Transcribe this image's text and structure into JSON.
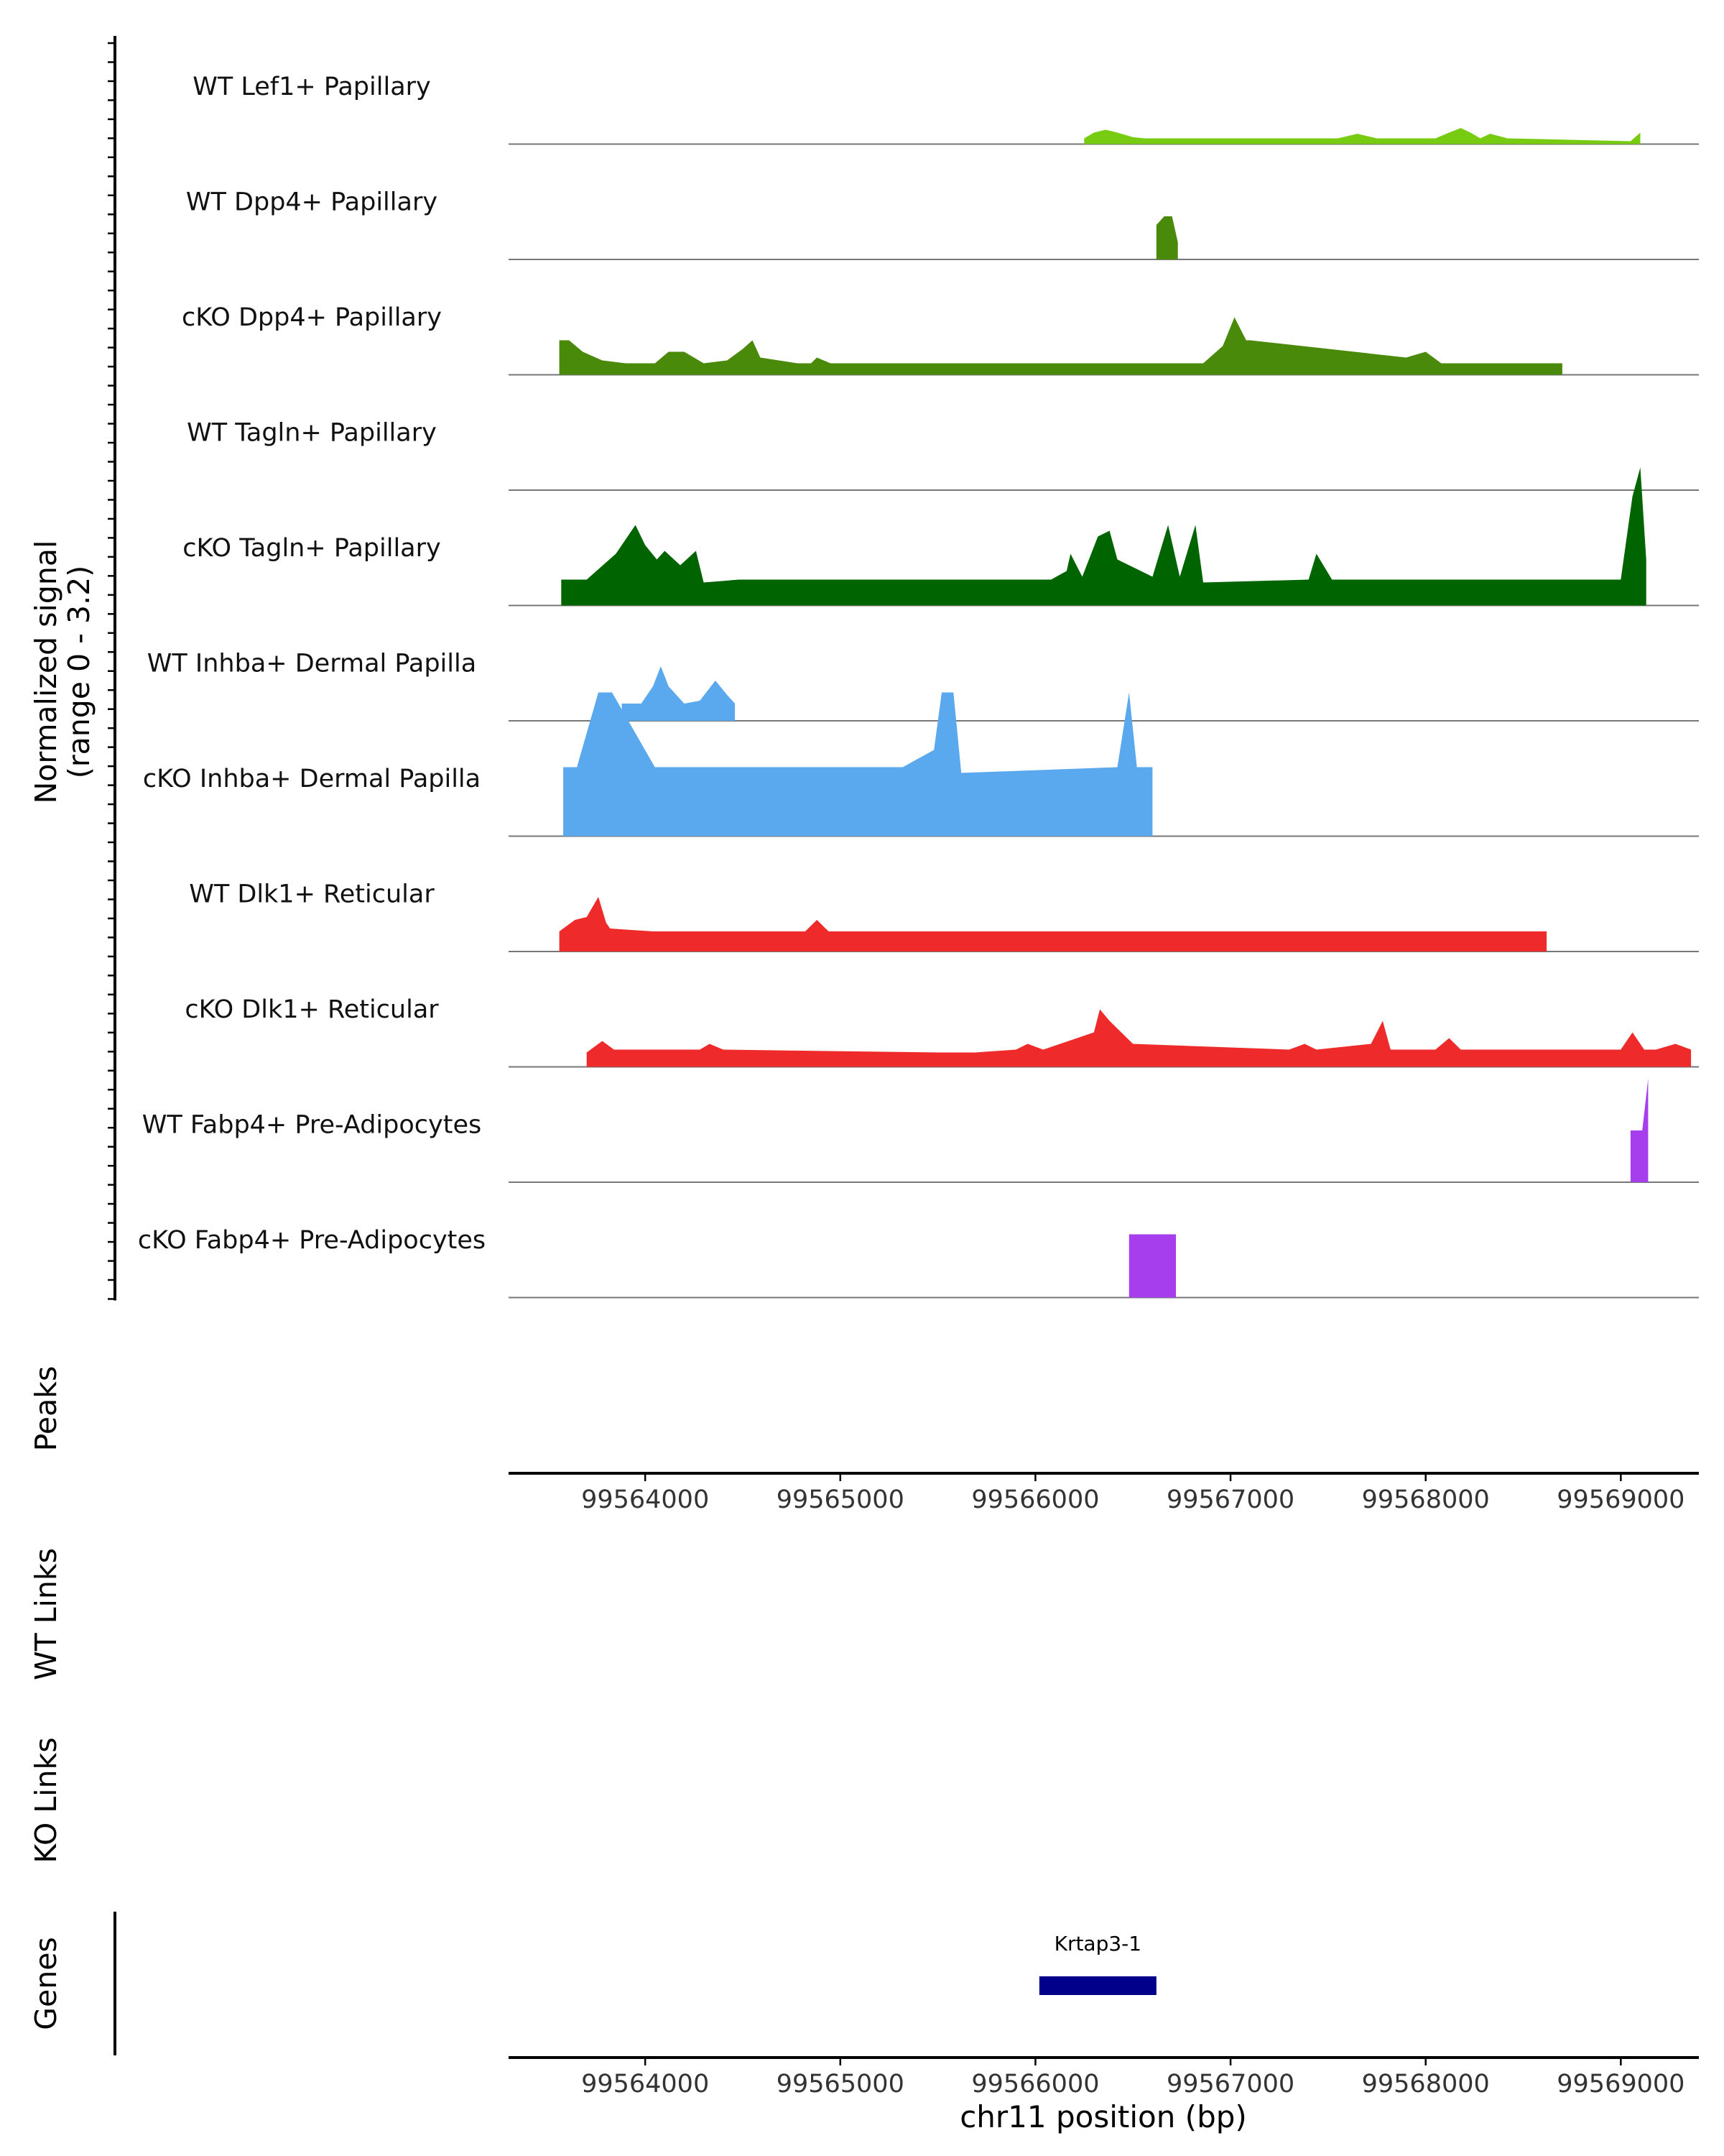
{
  "chart_data": {
    "type": "area",
    "title": "",
    "region": "chr11",
    "xlabel": "chr11 position (bp)",
    "xlim": [
      99563300,
      99569400
    ],
    "xticks": [
      99564000,
      99565000,
      99566000,
      99567000,
      99568000,
      99569000
    ],
    "xtick_labels": [
      "99564000",
      "99565000",
      "99566000",
      "99567000",
      "99568000",
      "99569000"
    ],
    "ylabel_line1": "Normalized signal",
    "ylabel_line2": "(range 0 - 3.2)",
    "ylim": [
      0,
      3.2
    ],
    "panel_labels": {
      "peaks": "Peaks",
      "wt_links": "WT Links",
      "ko_links": "KO Links",
      "genes": "Genes"
    },
    "tracks": [
      {
        "name": "WT Lef1+ Papillary",
        "color": "#77CC11",
        "points": [
          [
            99566250,
            0.1
          ],
          [
            99566300,
            0.2
          ],
          [
            99566360,
            0.25
          ],
          [
            99566420,
            0.2
          ],
          [
            99566500,
            0.12
          ],
          [
            99566560,
            0.1
          ],
          [
            99567020,
            0.1
          ],
          [
            99567120,
            0.1
          ],
          [
            99567250,
            0.1
          ],
          [
            99567350,
            0.1
          ],
          [
            99567550,
            0.1
          ],
          [
            99567650,
            0.18
          ],
          [
            99567750,
            0.1
          ],
          [
            99567950,
            0.1
          ],
          [
            99568050,
            0.1
          ],
          [
            99568120,
            0.2
          ],
          [
            99568180,
            0.28
          ],
          [
            99568230,
            0.2
          ],
          [
            99568280,
            0.1
          ],
          [
            99568330,
            0.18
          ],
          [
            99568420,
            0.1
          ],
          [
            99569050,
            0.05
          ],
          [
            99569100,
            0.2
          ]
        ]
      },
      {
        "name": "WT Dpp4+ Papillary",
        "color": "#4A8A0A",
        "points": [
          [
            99566620,
            0.6
          ],
          [
            99566660,
            0.75
          ],
          [
            99566700,
            0.75
          ],
          [
            99566730,
            0.3
          ]
        ]
      },
      {
        "name": "cKO Dpp4+ Papillary",
        "color": "#4A8A0A",
        "points": [
          [
            99563560,
            0.6
          ],
          [
            99563610,
            0.6
          ],
          [
            99563680,
            0.4
          ],
          [
            99563780,
            0.25
          ],
          [
            99563900,
            0.2
          ],
          [
            99564050,
            0.2
          ],
          [
            99564120,
            0.4
          ],
          [
            99564200,
            0.4
          ],
          [
            99564300,
            0.2
          ],
          [
            99564420,
            0.25
          ],
          [
            99564500,
            0.45
          ],
          [
            99564550,
            0.6
          ],
          [
            99564590,
            0.3
          ],
          [
            99564780,
            0.2
          ],
          [
            99564850,
            0.2
          ],
          [
            99564880,
            0.3
          ],
          [
            99564950,
            0.2
          ],
          [
            99565400,
            0.2
          ],
          [
            99565500,
            0.2
          ],
          [
            99565650,
            0.2
          ],
          [
            99565900,
            0.2
          ],
          [
            99566780,
            0.2
          ],
          [
            99566860,
            0.2
          ],
          [
            99566960,
            0.5
          ],
          [
            99567020,
            1.0
          ],
          [
            99567080,
            0.6
          ],
          [
            99567100,
            0.6
          ],
          [
            99567900,
            0.3
          ],
          [
            99568000,
            0.4
          ],
          [
            99568080,
            0.2
          ],
          [
            99568200,
            0.2
          ],
          [
            99568500,
            0.2
          ],
          [
            99568700,
            0.2
          ]
        ]
      },
      {
        "name": "WT Tagln+ Papillary",
        "color": "#006400",
        "points": []
      },
      {
        "name": "cKO Tagln+ Papillary",
        "color": "#006400",
        "points": [
          [
            99563570,
            0.45
          ],
          [
            99563700,
            0.45
          ],
          [
            99563850,
            0.9
          ],
          [
            99563950,
            1.4
          ],
          [
            99564000,
            1.05
          ],
          [
            99564060,
            0.8
          ],
          [
            99564100,
            0.95
          ],
          [
            99564180,
            0.7
          ],
          [
            99564260,
            0.95
          ],
          [
            99564300,
            0.4
          ],
          [
            99564480,
            0.45
          ],
          [
            99564590,
            0.45
          ],
          [
            99565880,
            0.45
          ],
          [
            99566080,
            0.45
          ],
          [
            99566160,
            0.6
          ],
          [
            99566180,
            0.9
          ],
          [
            99566240,
            0.5
          ],
          [
            99566320,
            1.2
          ],
          [
            99566380,
            1.3
          ],
          [
            99566420,
            0.8
          ],
          [
            99566600,
            0.5
          ],
          [
            99566680,
            1.4
          ],
          [
            99566740,
            0.5
          ],
          [
            99566820,
            1.4
          ],
          [
            99566860,
            0.4
          ],
          [
            99567400,
            0.45
          ],
          [
            99567440,
            0.9
          ],
          [
            99567520,
            0.45
          ],
          [
            99569000,
            0.45
          ],
          [
            99569060,
            1.9
          ],
          [
            99569100,
            2.4
          ],
          [
            99569130,
            0.8
          ]
        ]
      },
      {
        "name": "WT Inhba+ Dermal Papilla",
        "color": "#5AA9EE",
        "points": [
          [
            99563880,
            0.3
          ],
          [
            99563980,
            0.3
          ],
          [
            99564040,
            0.6
          ],
          [
            99564080,
            0.95
          ],
          [
            99564120,
            0.6
          ],
          [
            99564200,
            0.3
          ],
          [
            99564280,
            0.35
          ],
          [
            99564360,
            0.7
          ],
          [
            99564420,
            0.45
          ],
          [
            99564460,
            0.3
          ]
        ]
      },
      {
        "name": "cKO Inhba+ Dermal Papilla",
        "color": "#5AA9EE",
        "points": [
          [
            99563580,
            1.2
          ],
          [
            99563650,
            1.2
          ],
          [
            99563760,
            2.5
          ],
          [
            99563830,
            2.5
          ],
          [
            99564050,
            1.2
          ],
          [
            99564130,
            1.2
          ],
          [
            99565100,
            1.2
          ],
          [
            99565170,
            1.2
          ],
          [
            99565250,
            1.2
          ],
          [
            99565320,
            1.2
          ],
          [
            99565480,
            1.5
          ],
          [
            99565520,
            2.5
          ],
          [
            99565580,
            2.5
          ],
          [
            99565620,
            1.1
          ],
          [
            99566420,
            1.2
          ],
          [
            99566480,
            2.5
          ],
          [
            99566520,
            1.2
          ],
          [
            99566600,
            1.2
          ]
        ]
      },
      {
        "name": "WT Dlk1+ Reticular",
        "color": "#EE2A2A",
        "points": [
          [
            99563560,
            0.35
          ],
          [
            99563640,
            0.55
          ],
          [
            99563700,
            0.6
          ],
          [
            99563760,
            0.95
          ],
          [
            99563800,
            0.5
          ],
          [
            99563820,
            0.4
          ],
          [
            99564040,
            0.35
          ],
          [
            99564100,
            0.35
          ],
          [
            99564820,
            0.35
          ],
          [
            99564880,
            0.55
          ],
          [
            99564940,
            0.35
          ],
          [
            99568350,
            0.35
          ],
          [
            99568450,
            0.35
          ],
          [
            99568530,
            0.35
          ],
          [
            99568620,
            0.35
          ]
        ]
      },
      {
        "name": "cKO Dlk1+ Reticular",
        "color": "#EE2A2A",
        "points": [
          [
            99563700,
            0.25
          ],
          [
            99563780,
            0.45
          ],
          [
            99563840,
            0.3
          ],
          [
            99564020,
            0.3
          ],
          [
            99564100,
            0.3
          ],
          [
            99564280,
            0.3
          ],
          [
            99564330,
            0.4
          ],
          [
            99564400,
            0.3
          ],
          [
            99565500,
            0.25
          ],
          [
            99565690,
            0.25
          ],
          [
            99565900,
            0.3
          ],
          [
            99565960,
            0.4
          ],
          [
            99566040,
            0.3
          ],
          [
            99566300,
            0.6
          ],
          [
            99566330,
            1.0
          ],
          [
            99566380,
            0.8
          ],
          [
            99566440,
            0.6
          ],
          [
            99566500,
            0.4
          ],
          [
            99567300,
            0.3
          ],
          [
            99567380,
            0.4
          ],
          [
            99567440,
            0.3
          ],
          [
            99567720,
            0.4
          ],
          [
            99567780,
            0.8
          ],
          [
            99567820,
            0.3
          ],
          [
            99567960,
            0.3
          ],
          [
            99568050,
            0.3
          ],
          [
            99568120,
            0.5
          ],
          [
            99568180,
            0.3
          ],
          [
            99568250,
            0.3
          ],
          [
            99568360,
            0.3
          ],
          [
            99569000,
            0.3
          ],
          [
            99569060,
            0.6
          ],
          [
            99569120,
            0.3
          ],
          [
            99569180,
            0.3
          ],
          [
            99569280,
            0.4
          ],
          [
            99569360,
            0.3
          ]
        ]
      },
      {
        "name": "WT Fabp4+ Pre-Adipocytes",
        "color": "#A63EEE",
        "points": [
          [
            99569050,
            0.9
          ],
          [
            99569110,
            0.9
          ],
          [
            99569140,
            1.8
          ]
        ]
      },
      {
        "name": "cKO Fabp4+ Pre-Adipocytes",
        "color": "#A63EEE",
        "points": [
          [
            99566480,
            1.1
          ],
          [
            99566560,
            1.1
          ],
          [
            99566640,
            1.1
          ],
          [
            99566720,
            1.1
          ]
        ]
      }
    ],
    "genes": [
      {
        "name": "Krtap3-1",
        "start": 99566020,
        "end": 99566620,
        "color": "#00008B"
      }
    ]
  }
}
